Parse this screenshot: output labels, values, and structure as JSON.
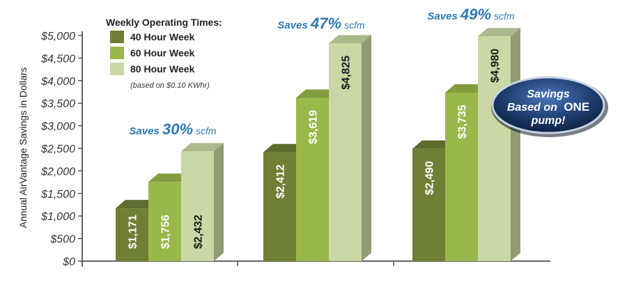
{
  "colors": {
    "week40": "#6f7f36",
    "week60": "#9ab84a",
    "week80": "#c9d8a4",
    "saves_text": "#2a7ab8",
    "badge": "#1c3a6b"
  },
  "chart_data": {
    "type": "bar",
    "ylabel": "Annual AirVantage Savings in Dollars",
    "ylim": [
      0,
      5000
    ],
    "yticks": [
      "$0",
      "$500",
      "$1,000",
      "$1,500",
      "$2,000",
      "$2,500",
      "$3,000",
      "$3,500",
      "$4,000",
      "$4,500",
      "$5,000"
    ],
    "legend_title": "Weekly Operating Times:",
    "legend_note": "(based on $0.10 KWhr)",
    "series": [
      {
        "name": "40 Hour Week",
        "values": [
          1171,
          2412,
          2490
        ],
        "labels": [
          "$1,171",
          "$2,412",
          "$2,490"
        ]
      },
      {
        "name": "60 Hour Week",
        "values": [
          1756,
          3619,
          3735
        ],
        "labels": [
          "$1,756",
          "$3,619",
          "$3,735"
        ]
      },
      {
        "name": "80 Hour Week",
        "values": [
          2432,
          4825,
          4980
        ],
        "labels": [
          "$2,432",
          "$4,825",
          "$4,980"
        ]
      }
    ],
    "annotations": [
      {
        "prefix": "Saves",
        "percent": "30%",
        "unit": "scfm"
      },
      {
        "prefix": "Saves",
        "percent": "47%",
        "unit": "scfm"
      },
      {
        "prefix": "Saves",
        "percent": "49%",
        "unit": "scfm"
      }
    ],
    "badge": {
      "line1": "Savings",
      "line2_prefix": "Based on",
      "line2_emph": "ONE",
      "line3": "pump!"
    }
  }
}
